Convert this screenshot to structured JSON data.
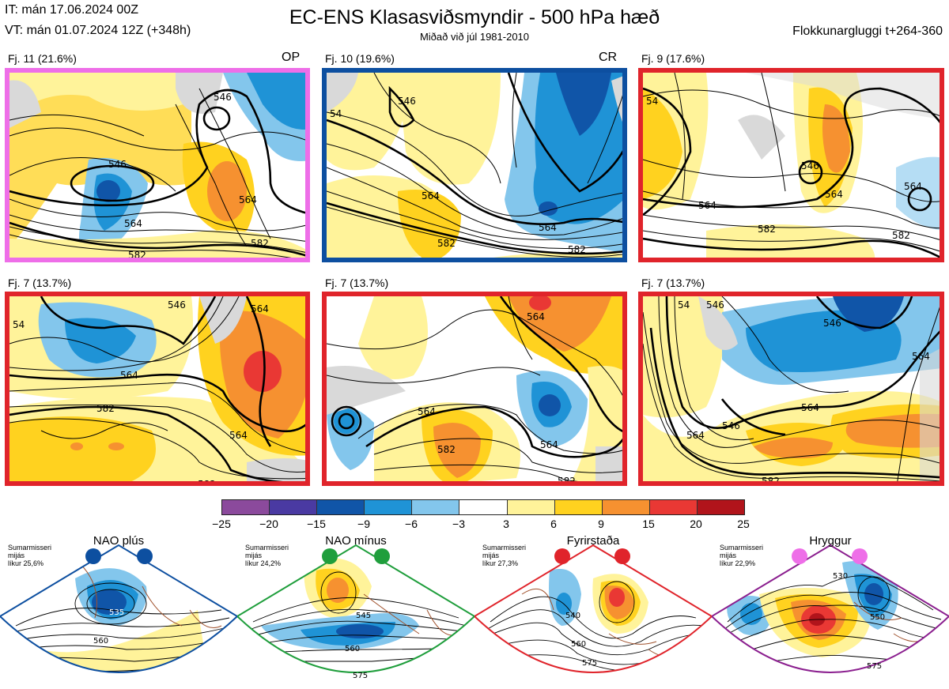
{
  "header": {
    "it_line": "IT: mán 17.06.2024 00Z",
    "vt_line": "VT: mán 01.07.2024 12Z  (+348h)",
    "title": "EC-ENS Klasasviðsmyndir - 500 hPa hæð",
    "subtitle": "Miðað við júl 1981-2010",
    "window": "Flokkunargluggi t+264-360"
  },
  "panels": [
    {
      "label": "Fj. 11 (21.6%)",
      "tag": "OP",
      "border": "#ee6ee8",
      "contours": [
        "546",
        "564",
        "582"
      ]
    },
    {
      "label": "Fj. 10 (19.6%)",
      "tag": "CR",
      "border": "#0d4fa0",
      "contours": [
        "546",
        "564",
        "582",
        "54"
      ]
    },
    {
      "label": "Fj. 9 (17.6%)",
      "tag": "",
      "border": "#e0242b",
      "contours": [
        "546",
        "564",
        "582",
        "54"
      ]
    },
    {
      "label": "Fj. 7 (13.7%)",
      "tag": "",
      "border": "#e0242b",
      "contours": [
        "546",
        "564",
        "582",
        "54"
      ]
    },
    {
      "label": "Fj. 7 (13.7%)",
      "tag": "",
      "border": "#e0242b",
      "contours": [
        "564",
        "582"
      ]
    },
    {
      "label": "Fj. 7 (13.7%)",
      "tag": "",
      "border": "#e0242b",
      "contours": [
        "546",
        "564",
        "582",
        "54"
      ]
    }
  ],
  "colorbar": {
    "colors": [
      "#8b4a9c",
      "#4a3aa2",
      "#1055a8",
      "#1f93d6",
      "#83c6ec",
      "#ffffff",
      "#fff39a",
      "#ffd21f",
      "#f69130",
      "#e93834",
      "#b1141b"
    ],
    "ticks": [
      "−25",
      "−20",
      "−15",
      "−9",
      "−6",
      "−3",
      "3",
      "6",
      "9",
      "15",
      "20",
      "25"
    ]
  },
  "regimes": [
    {
      "title": "NAO plús",
      "note": [
        "Sumarmisseri",
        "mijás",
        "líkur 25,6%"
      ],
      "color": "#0d4fa0",
      "labels": [
        "535",
        "560"
      ]
    },
    {
      "title": "NAO mínus",
      "note": [
        "Sumarmisseri",
        "mijás",
        "líkur 24,2%"
      ],
      "color": "#1f9e3c",
      "labels": [
        "545",
        "560",
        "575"
      ]
    },
    {
      "title": "Fyrirstaða",
      "note": [
        "Sumarmisseri",
        "mijás",
        "líkur 27,3%"
      ],
      "color": "#e0242b",
      "labels": [
        "540",
        "560",
        "575"
      ]
    },
    {
      "title": "Hryggur",
      "note": [
        "Sumarmisseri",
        "mijás",
        "líkur 22,9%"
      ],
      "color": "#8b1f8f",
      "labels": [
        "530",
        "550",
        "575"
      ]
    }
  ]
}
